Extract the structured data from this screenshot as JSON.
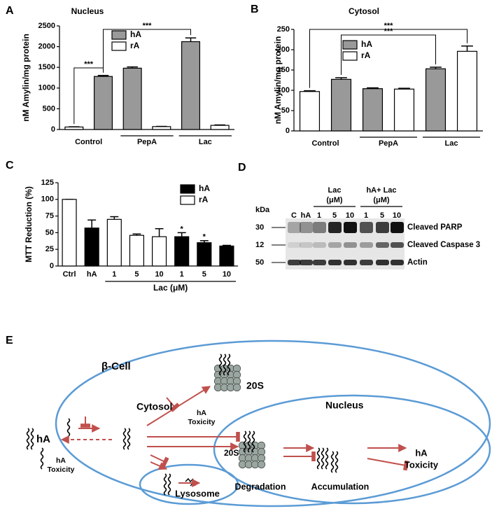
{
  "panel_labels": [
    "A",
    "B",
    "C",
    "D",
    "E"
  ],
  "chart_data": [
    {
      "type": "bar",
      "title": "Nucleus",
      "y_label": "nM Amylin/mg protein",
      "categories": [
        "Control",
        null,
        "PepA",
        null,
        "Lac",
        null
      ],
      "values": [
        60,
        1280,
        1480,
        70,
        2120,
        100
      ],
      "errors": [
        5,
        25,
        30,
        5,
        90,
        10
      ],
      "colors": [
        "#ffffff",
        "#999999",
        "#999999",
        "#ffffff",
        "#999999",
        "#ffffff"
      ],
      "legend": [
        {
          "name": "hA",
          "color": "#999999"
        },
        {
          "name": "rA",
          "color": "#ffffff"
        }
      ],
      "ylim": [
        0,
        2500
      ],
      "yticks": [
        0,
        500,
        1000,
        1500,
        2000,
        2500
      ],
      "significance": [
        "***",
        "***"
      ]
    },
    {
      "type": "bar",
      "title": "Cytosol",
      "y_label": "nM Amylin/mg protein",
      "categories": [
        "Control",
        null,
        "PepA",
        null,
        "Lac",
        null
      ],
      "values": [
        97,
        127,
        104,
        103,
        153,
        196
      ],
      "errors": [
        2,
        4,
        2,
        2,
        4,
        13
      ],
      "colors": [
        "#ffffff",
        "#999999",
        "#999999",
        "#ffffff",
        "#999999",
        "#ffffff"
      ],
      "legend": [
        {
          "name": "hA",
          "color": "#999999"
        },
        {
          "name": "rA",
          "color": "#ffffff"
        }
      ],
      "ylim": [
        0,
        250
      ],
      "yticks": [
        0,
        50,
        100,
        150,
        200,
        250
      ],
      "significance": [
        "***",
        "***"
      ]
    },
    {
      "type": "bar",
      "y_label": "MTT Reduction (%)",
      "x_label": "Lac (μM)",
      "categories": [
        "Ctrl",
        "hA",
        "1",
        "5",
        "10",
        "1",
        "5",
        "10"
      ],
      "values": [
        100,
        57,
        70,
        46,
        44,
        44,
        35,
        30
      ],
      "errors": [
        0,
        12,
        4,
        2,
        12,
        6,
        3,
        1
      ],
      "colors": [
        "#ffffff",
        "#000000",
        "#ffffff",
        "#ffffff",
        "#ffffff",
        "#000000",
        "#000000",
        "#000000"
      ],
      "legend": [
        {
          "name": "hA",
          "color": "#000000"
        },
        {
          "name": "rA",
          "color": "#ffffff"
        }
      ],
      "ylim": [
        0,
        125
      ],
      "yticks": [
        0,
        25,
        50,
        75,
        100,
        125
      ],
      "annotations": [
        "*",
        "*"
      ]
    }
  ],
  "blot": {
    "kda_label": "kDa",
    "markers": [
      "30",
      "12",
      "50"
    ],
    "lanes": [
      "C",
      "hA",
      "1",
      "5",
      "10",
      "1",
      "5",
      "10"
    ],
    "groups": [
      [
        "Lac",
        "(μM)"
      ],
      [
        "hA+ Lac",
        "(μM)"
      ]
    ],
    "bands": [
      "Cleaved PARP",
      "Cleaved Caspase 3",
      "Actin"
    ]
  },
  "diagram": {
    "cell": "β-Cell",
    "cytosol": "Cytosol",
    "nucleus": "Nucleus",
    "proteasome": [
      "20S",
      "20S"
    ],
    "outside": "hA",
    "toxicity": [
      [
        "hA",
        "Toxicity"
      ],
      [
        "hA",
        "Toxicity"
      ],
      [
        "hA",
        "Toxicity"
      ]
    ],
    "degradation": "Degradation",
    "accumulation": "Accumulation",
    "lysosome": "Lysosome"
  }
}
